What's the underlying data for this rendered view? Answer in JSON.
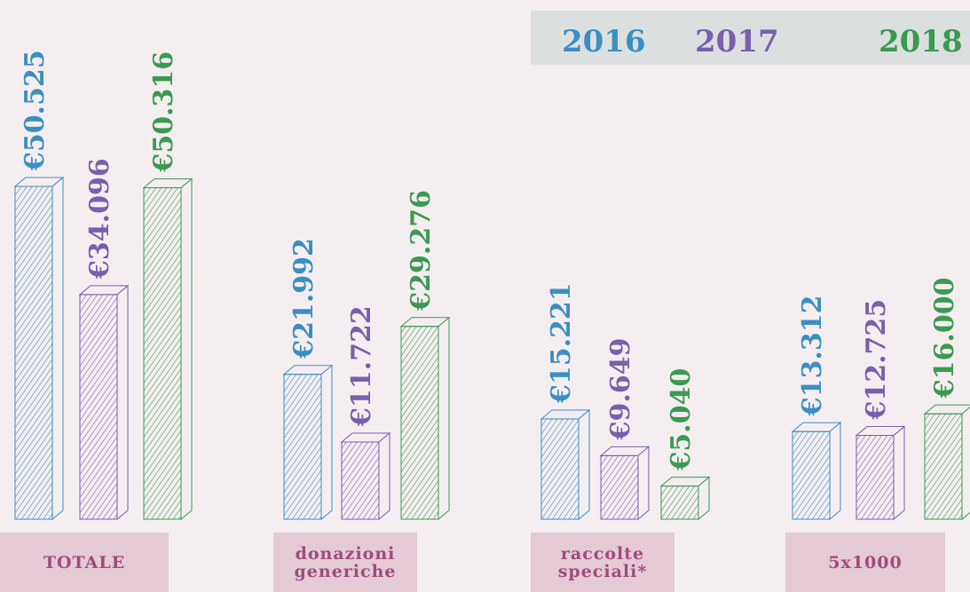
{
  "chart_data": {
    "type": "bar3d",
    "categories": [
      "TOTALE",
      "donazioni generiche",
      "raccolte speciali*",
      "5x1000"
    ],
    "series": [
      {
        "name": "2016",
        "color": "#3b8fc2",
        "values": [
          50525,
          21992,
          15221,
          13312
        ],
        "value_labels": [
          "€50.525",
          "€21.992",
          "€15.221",
          "€13.312"
        ]
      },
      {
        "name": "2017",
        "color": "#7a5fae",
        "values": [
          34096,
          11722,
          9649,
          12725
        ],
        "value_labels": [
          "€34.096",
          "€11.722",
          "€9.649",
          "€12.725"
        ]
      },
      {
        "name": "2018",
        "color": "#3a9a52",
        "values": [
          50316,
          29276,
          5040,
          16000
        ],
        "value_labels": [
          "€50.316",
          "€29.276",
          "€5.040",
          "€16.000"
        ]
      }
    ],
    "legend": "top-right"
  }
}
